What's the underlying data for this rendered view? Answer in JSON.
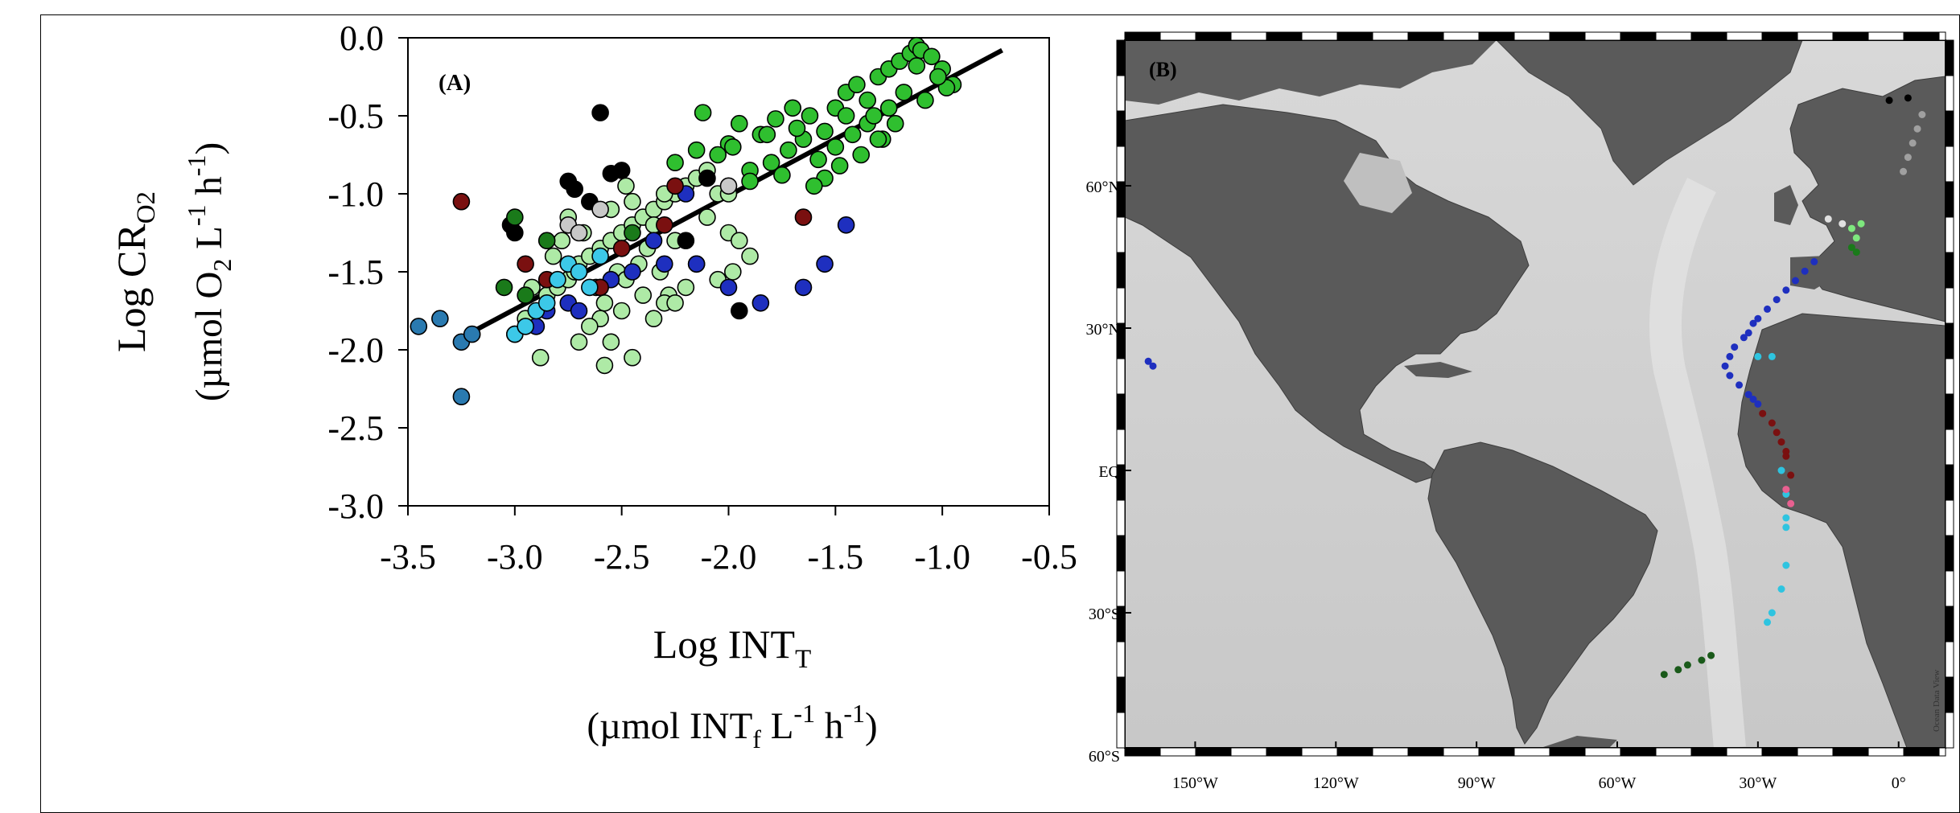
{
  "chart_data": [
    {
      "type": "scatter",
      "panel_label": "(A)",
      "ylabel_line1": "Log CR",
      "ylabel_line1_sub": "O2",
      "ylabel_line2_parts": [
        "(µmol O",
        "2",
        " L",
        "-1",
        " h",
        "-1",
        ")"
      ],
      "xlabel_line1": "Log INT",
      "xlabel_line1_sub": "T",
      "xlabel_line2_parts": [
        "(µmol INT",
        "f",
        " L",
        "-1",
        " h",
        "-1",
        ")"
      ],
      "xlim": [
        -3.5,
        -0.5
      ],
      "ylim": [
        -3.0,
        0.0
      ],
      "xticks": [
        -3.5,
        -3.0,
        -2.5,
        -2.0,
        -1.5,
        -1.0,
        -0.5
      ],
      "xtick_labels": [
        "-3.5",
        "-3.0",
        "-2.5",
        "-2.0",
        "-1.5",
        "-1.0",
        "-0.5"
      ],
      "yticks": [
        0.0,
        -0.5,
        -1.0,
        -1.5,
        -2.0,
        -2.5,
        -3.0
      ],
      "ytick_labels": [
        "0.0",
        "-0.5",
        "-1.0",
        "-1.5",
        "-2.0",
        "-2.5",
        "-3.0"
      ],
      "grid": false,
      "regression_line": {
        "x": [
          -3.22,
          -0.72
        ],
        "y": [
          -1.9,
          -0.08
        ]
      },
      "series": [
        {
          "color": "#2fbf2f",
          "x": [
            -2.12,
            -1.95,
            -1.85,
            -1.78,
            -1.7,
            -1.62,
            -1.55,
            -1.5,
            -1.45,
            -1.4,
            -1.35,
            -1.3,
            -1.25,
            -1.2,
            -1.15,
            -1.12,
            -1.1,
            -1.05,
            -1.0,
            -0.95,
            -1.18,
            -1.25,
            -1.35,
            -1.42,
            -1.5,
            -1.58,
            -1.65,
            -1.72,
            -1.8,
            -1.9,
            -2.0,
            -2.05,
            -1.32,
            -1.22,
            -1.08,
            -0.98,
            -1.28,
            -1.38,
            -1.48,
            -1.55,
            -1.6,
            -1.68,
            -1.75,
            -1.82,
            -1.9,
            -1.98,
            -2.15,
            -2.25,
            -1.12,
            -1.02,
            -1.45,
            -1.3
          ],
          "y": [
            -0.48,
            -0.55,
            -0.62,
            -0.52,
            -0.45,
            -0.5,
            -0.6,
            -0.45,
            -0.35,
            -0.3,
            -0.4,
            -0.25,
            -0.2,
            -0.15,
            -0.1,
            -0.05,
            -0.08,
            -0.12,
            -0.2,
            -0.3,
            -0.35,
            -0.45,
            -0.55,
            -0.62,
            -0.7,
            -0.78,
            -0.65,
            -0.72,
            -0.8,
            -0.85,
            -0.68,
            -0.75,
            -0.5,
            -0.55,
            -0.4,
            -0.32,
            -0.65,
            -0.75,
            -0.82,
            -0.9,
            -0.95,
            -0.58,
            -0.88,
            -0.62,
            -0.92,
            -0.7,
            -0.72,
            -0.8,
            -0.18,
            -0.25,
            -0.5,
            -0.65
          ]
        },
        {
          "color": "#aeeaa6",
          "x": [
            -3.0,
            -2.95,
            -2.9,
            -2.85,
            -2.8,
            -2.75,
            -2.7,
            -2.65,
            -2.6,
            -2.55,
            -2.5,
            -2.45,
            -2.4,
            -2.35,
            -2.3,
            -2.25,
            -2.2,
            -2.15,
            -2.1,
            -2.05,
            -2.0,
            -1.95,
            -1.9,
            -2.62,
            -2.58,
            -2.52,
            -2.48,
            -2.42,
            -2.38,
            -2.32,
            -2.28,
            -2.72,
            -2.68,
            -2.82,
            -2.78,
            -2.92,
            -2.55,
            -2.45,
            -2.35,
            -2.25,
            -2.15,
            -2.05,
            -2.6,
            -2.5,
            -2.4,
            -2.3,
            -2.2,
            -2.1,
            -2.0,
            -2.7,
            -2.65,
            -2.55,
            -2.45,
            -2.35,
            -2.25,
            -2.88,
            -2.58,
            -2.75,
            -2.48,
            -2.3,
            -1.98
          ],
          "y": [
            -1.9,
            -1.8,
            -1.75,
            -1.65,
            -1.6,
            -1.55,
            -1.45,
            -1.4,
            -1.35,
            -1.3,
            -1.25,
            -1.2,
            -1.15,
            -1.1,
            -1.05,
            -1.0,
            -0.95,
            -0.9,
            -0.85,
            -1.0,
            -1.25,
            -1.3,
            -1.4,
            -1.6,
            -1.7,
            -1.5,
            -1.55,
            -1.45,
            -1.35,
            -1.5,
            -1.65,
            -1.5,
            -1.25,
            -1.4,
            -1.3,
            -1.6,
            -1.1,
            -1.05,
            -1.2,
            -1.3,
            -1.45,
            -1.55,
            -1.8,
            -1.75,
            -1.65,
            -1.7,
            -1.6,
            -1.15,
            -1.0,
            -1.95,
            -1.85,
            -1.95,
            -2.05,
            -1.8,
            -1.7,
            -2.05,
            -2.1,
            -1.15,
            -0.95,
            -1.0,
            -1.5
          ]
        },
        {
          "color": "#000000",
          "x": [
            -3.02,
            -3.0,
            -2.75,
            -2.72,
            -2.6,
            -2.55,
            -2.5,
            -2.1,
            -1.95,
            -2.2,
            -2.65
          ],
          "y": [
            -1.2,
            -1.25,
            -0.92,
            -0.97,
            -0.48,
            -0.87,
            -0.85,
            -0.9,
            -1.75,
            -1.3,
            -1.05
          ]
        },
        {
          "color": "#1e2fbf",
          "x": [
            -2.9,
            -2.85,
            -2.75,
            -2.6,
            -2.55,
            -2.45,
            -2.3,
            -2.2,
            -2.15,
            -2.0,
            -1.85,
            -1.65,
            -1.55,
            -1.45,
            -2.35,
            -2.7
          ],
          "y": [
            -1.85,
            -1.75,
            -1.7,
            -1.6,
            -1.55,
            -1.5,
            -1.45,
            -1.0,
            -1.45,
            -1.6,
            -1.7,
            -1.6,
            -1.45,
            -1.2,
            -1.3,
            -1.75
          ]
        },
        {
          "color": "#7a1010",
          "x": [
            -3.25,
            -2.95,
            -2.85,
            -2.7,
            -2.6,
            -2.5,
            -2.3,
            -2.25,
            -1.65
          ],
          "y": [
            -1.05,
            -1.45,
            -1.55,
            -1.5,
            -1.6,
            -1.35,
            -1.2,
            -0.95,
            -1.15
          ]
        },
        {
          "color": "#1a7a1a",
          "x": [
            -3.05,
            -3.0,
            -2.85,
            -2.45,
            -2.95
          ],
          "y": [
            -1.6,
            -1.15,
            -1.3,
            -1.25,
            -1.65
          ]
        },
        {
          "color": "#3cc8e8",
          "x": [
            -3.0,
            -2.95,
            -2.9,
            -2.85,
            -2.8,
            -2.75,
            -2.7,
            -2.65,
            -2.6
          ],
          "y": [
            -1.9,
            -1.85,
            -1.75,
            -1.7,
            -1.55,
            -1.45,
            -1.5,
            -1.6,
            -1.4
          ]
        },
        {
          "color": "#2a7ab0",
          "x": [
            -3.45,
            -3.35,
            -3.25,
            -3.25,
            -3.2
          ],
          "y": [
            -1.85,
            -1.8,
            -1.95,
            -2.3,
            -1.9
          ]
        },
        {
          "color": "#c8c8c8",
          "x": [
            -2.75,
            -2.7,
            -2.6,
            -2.0
          ],
          "y": [
            -1.2,
            -1.25,
            -1.1,
            -0.95
          ]
        }
      ]
    },
    {
      "type": "map",
      "panel_label": "(B)",
      "lat_labels": [
        "60°N",
        "30°N",
        "EQ",
        "30°S",
        "60°S"
      ],
      "lon_labels": [
        "150°W",
        "120°W",
        "90°W",
        "60°W",
        "30°W",
        "0°"
      ],
      "credit": "Ocean Data View",
      "station_groups": [
        {
          "color": "#000000",
          "lons": [
            -2,
            2
          ],
          "lats": [
            78,
            78.5
          ]
        },
        {
          "color": "#a0a0a0",
          "lons": [
            5,
            4,
            3,
            2,
            1
          ],
          "lats": [
            75,
            72,
            69,
            66,
            63
          ]
        },
        {
          "color": "#e0e0e0",
          "lons": [
            -15,
            -12
          ],
          "lats": [
            53,
            52
          ]
        },
        {
          "color": "#7ee87e",
          "lons": [
            -8,
            -10,
            -9
          ],
          "lats": [
            52,
            51,
            49
          ]
        },
        {
          "color": "#1a7a1a",
          "lons": [
            -10,
            -9
          ],
          "lats": [
            47,
            46
          ]
        },
        {
          "color": "#2ec4e0",
          "lons": [
            -30,
            -27,
            -25,
            -24,
            -24,
            -24,
            -24,
            -25,
            -27,
            -28
          ],
          "lats": [
            24,
            24,
            0,
            -5,
            -10,
            -12,
            -20,
            -25,
            -30,
            -32
          ]
        },
        {
          "color": "#1e2fbf",
          "lons": [
            -18,
            -20,
            -22,
            -24,
            -26,
            -28,
            -30,
            -31,
            -32,
            -33,
            -35,
            -36,
            -37,
            -36,
            -34,
            -32,
            -31,
            -30,
            -160,
            -159
          ],
          "lats": [
            44,
            42,
            40,
            38,
            36,
            34,
            32,
            31,
            29,
            28,
            26,
            24,
            22,
            20,
            18,
            16,
            15,
            14,
            23,
            22
          ]
        },
        {
          "color": "#7a1010",
          "lons": [
            -29,
            -27,
            -26,
            -25,
            -24,
            -24,
            -23
          ],
          "lats": [
            12,
            10,
            8,
            6,
            4,
            3,
            -1
          ]
        },
        {
          "color": "#e86090",
          "lons": [
            -24,
            -23
          ],
          "lats": [
            -4,
            -7
          ]
        },
        {
          "color": "#1a5a1a",
          "lons": [
            -50,
            -47,
            -45,
            -42,
            -40
          ],
          "lats": [
            -43,
            -42,
            -41,
            -40,
            -39
          ]
        }
      ]
    }
  ]
}
